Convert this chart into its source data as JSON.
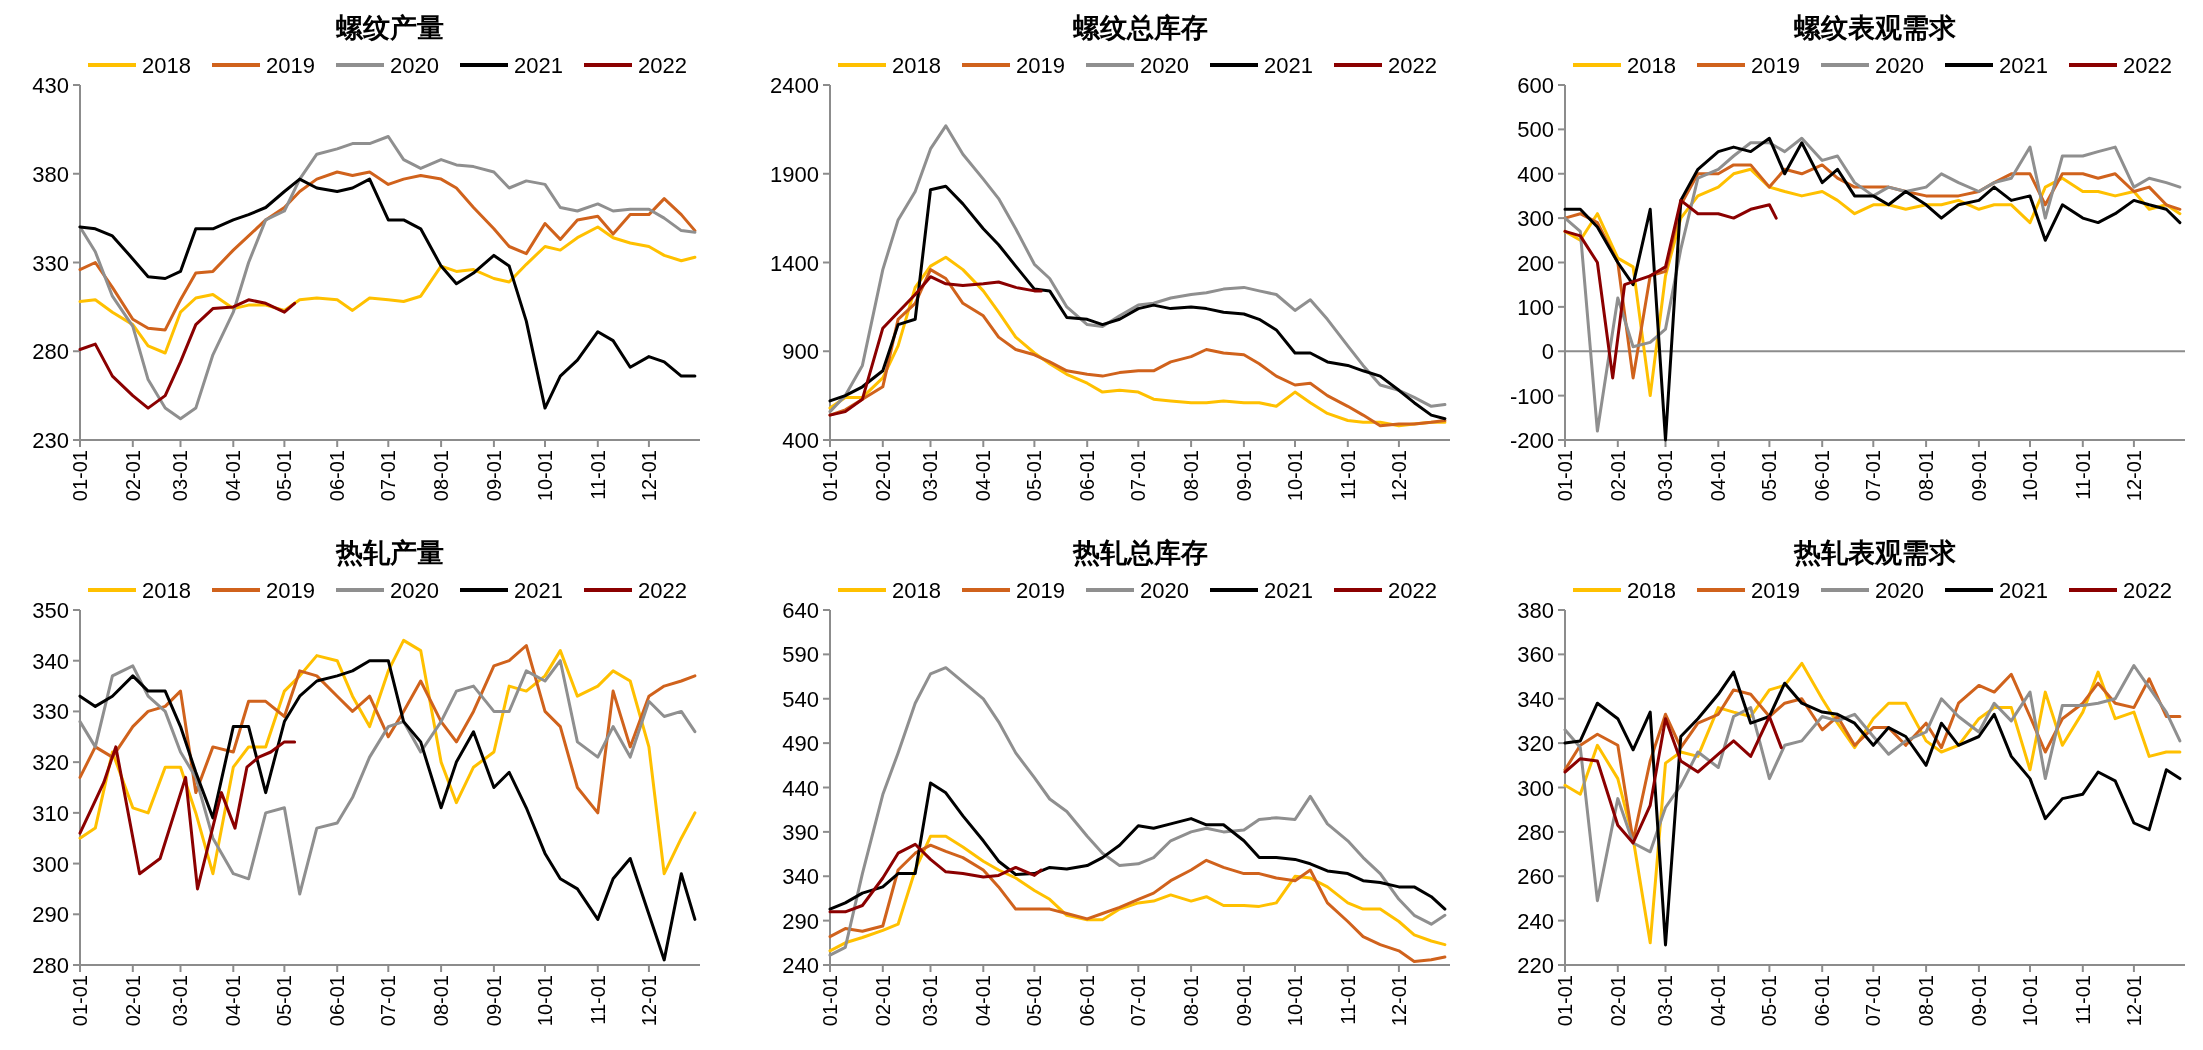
{
  "chart_data": [
    {
      "type": "line",
      "title": "螺纹产量",
      "legend": "top",
      "x": [
        "--01-01",
        "--01-10",
        "--01-20",
        "--02-01",
        "--02-10",
        "--02-20",
        "--03-01",
        "--03-10",
        "--03-20",
        "--04-01",
        "--04-10",
        "--04-20",
        "--05-01",
        "--05-10",
        "--05-20",
        "--06-01",
        "--06-10",
        "--06-20",
        "--07-01",
        "--07-10",
        "--07-20",
        "--08-01",
        "--08-10",
        "--08-20",
        "--09-01",
        "--09-10",
        "--09-20",
        "--10-01",
        "--10-10",
        "--10-20",
        "--11-01",
        "--11-10",
        "--11-20",
        "--12-01",
        "--12-10",
        "--12-20",
        "--12-28"
      ],
      "xlim": [
        "--01-01",
        "--12-31"
      ],
      "xticks": [
        {
          "value": "--01-01",
          "label": "01-01"
        },
        {
          "value": "--02-01",
          "label": "02-01"
        },
        {
          "value": "--03-01",
          "label": "03-01"
        },
        {
          "value": "--04-01",
          "label": "04-01"
        },
        {
          "value": "--05-01",
          "label": "05-01"
        },
        {
          "value": "--06-01",
          "label": "06-01"
        },
        {
          "value": "--07-01",
          "label": "07-01"
        },
        {
          "value": "--08-01",
          "label": "08-01"
        },
        {
          "value": "--09-01",
          "label": "09-01"
        },
        {
          "value": "--10-01",
          "label": "10-01"
        },
        {
          "value": "--11-01",
          "label": "11-01"
        },
        {
          "value": "--12-01",
          "label": "12-01"
        }
      ],
      "ylim": [
        230,
        430
      ],
      "yticks": [
        230,
        280,
        330,
        380,
        430
      ],
      "series": [
        {
          "name": "2018",
          "color": "#ffc000",
          "values": [
            308,
            309,
            302,
            295,
            283,
            279,
            302,
            310,
            312,
            304,
            306,
            306,
            303,
            309,
            310,
            309,
            303,
            310,
            309,
            308,
            311,
            328,
            325,
            326,
            321,
            319,
            329,
            339,
            337,
            344,
            350,
            344,
            341,
            339,
            334,
            331,
            333
          ]
        },
        {
          "name": "2019",
          "color": "#d0621c",
          "values": [
            326,
            330,
            316,
            298,
            293,
            292,
            309,
            324,
            325,
            337,
            345,
            354,
            361,
            370,
            377,
            381,
            379,
            381,
            374,
            377,
            379,
            377,
            372,
            361,
            349,
            339,
            335,
            352,
            343,
            354,
            356,
            346,
            357,
            357,
            366,
            357,
            348
          ]
        },
        {
          "name": "2020",
          "color": "#8f8f8f",
          "values": [
            350,
            336,
            311,
            294,
            264,
            248,
            242,
            248,
            278,
            302,
            330,
            354,
            359,
            377,
            391,
            394,
            397,
            397,
            401,
            388,
            383,
            388,
            385,
            384,
            381,
            372,
            376,
            374,
            361,
            359,
            363,
            359,
            360,
            360,
            355,
            348,
            347
          ]
        },
        {
          "name": "2021",
          "color": "#000000",
          "values": [
            350,
            349,
            345,
            332,
            322,
            321,
            325,
            349,
            349,
            354,
            357,
            361,
            370,
            377,
            372,
            370,
            372,
            377,
            354,
            354,
            349,
            328,
            318,
            324,
            334,
            328,
            297,
            248,
            266,
            275,
            291,
            286,
            271,
            277,
            274,
            266,
            266
          ]
        },
        {
          "name": "2022",
          "color": "#8b0000",
          "x": [
            "--01-01",
            "--01-10",
            "--01-20",
            "--02-01",
            "--02-10",
            "--02-20",
            "--03-01",
            "--03-10",
            "--03-20",
            "--04-01",
            "--04-10",
            "--04-20",
            "--05-01",
            "--05-07"
          ],
          "values": [
            281,
            284,
            266,
            255,
            248,
            255,
            274,
            295,
            304,
            305,
            309,
            307,
            302,
            307
          ]
        }
      ]
    },
    {
      "type": "line",
      "title": "螺纹总库存",
      "legend": "top",
      "x": [
        "--01-01",
        "--01-10",
        "--01-20",
        "--02-01",
        "--02-10",
        "--02-20",
        "--03-01",
        "--03-10",
        "--03-20",
        "--04-01",
        "--04-10",
        "--04-20",
        "--05-01",
        "--05-10",
        "--05-20",
        "--06-01",
        "--06-10",
        "--06-20",
        "--07-01",
        "--07-10",
        "--07-20",
        "--08-01",
        "--08-10",
        "--08-20",
        "--09-01",
        "--09-10",
        "--09-20",
        "--10-01",
        "--10-10",
        "--10-20",
        "--11-01",
        "--11-10",
        "--11-20",
        "--12-01",
        "--12-10",
        "--12-20",
        "--12-28"
      ],
      "xlim": [
        "--01-01",
        "--12-31"
      ],
      "xticks": [
        {
          "value": "--01-01",
          "label": "01-01"
        },
        {
          "value": "--02-01",
          "label": "02-01"
        },
        {
          "value": "--03-01",
          "label": "03-01"
        },
        {
          "value": "--04-01",
          "label": "04-01"
        },
        {
          "value": "--05-01",
          "label": "05-01"
        },
        {
          "value": "--06-01",
          "label": "06-01"
        },
        {
          "value": "--07-01",
          "label": "07-01"
        },
        {
          "value": "--08-01",
          "label": "08-01"
        },
        {
          "value": "--09-01",
          "label": "09-01"
        },
        {
          "value": "--10-01",
          "label": "10-01"
        },
        {
          "value": "--11-01",
          "label": "11-01"
        },
        {
          "value": "--12-01",
          "label": "12-01"
        }
      ],
      "ylim": [
        400,
        2400
      ],
      "yticks": [
        400,
        900,
        1400,
        1900,
        2400
      ],
      "series": [
        {
          "name": "2018",
          "color": "#ffc000",
          "values": [
            580,
            640,
            640,
            750,
            930,
            1260,
            1380,
            1430,
            1360,
            1240,
            1120,
            980,
            890,
            830,
            770,
            720,
            670,
            680,
            670,
            630,
            620,
            610,
            610,
            620,
            610,
            610,
            590,
            670,
            610,
            550,
            510,
            500,
            500,
            480,
            490,
            500,
            500
          ]
        },
        {
          "name": "2019",
          "color": "#d0621c",
          "values": [
            540,
            570,
            630,
            700,
            1080,
            1170,
            1360,
            1310,
            1170,
            1100,
            980,
            910,
            880,
            840,
            790,
            770,
            760,
            780,
            790,
            790,
            840,
            870,
            910,
            890,
            880,
            830,
            760,
            710,
            720,
            650,
            590,
            540,
            480,
            490,
            490,
            500,
            510
          ]
        },
        {
          "name": "2020",
          "color": "#8f8f8f",
          "values": [
            560,
            650,
            820,
            1360,
            1640,
            1800,
            2040,
            2170,
            2010,
            1870,
            1760,
            1590,
            1390,
            1310,
            1150,
            1050,
            1040,
            1100,
            1160,
            1170,
            1200,
            1220,
            1230,
            1250,
            1260,
            1240,
            1220,
            1130,
            1190,
            1080,
            930,
            820,
            710,
            680,
            640,
            590,
            600
          ]
        },
        {
          "name": "2021",
          "color": "#000000",
          "values": [
            620,
            650,
            700,
            790,
            1050,
            1080,
            1810,
            1830,
            1730,
            1590,
            1500,
            1380,
            1250,
            1240,
            1090,
            1080,
            1050,
            1080,
            1140,
            1160,
            1140,
            1150,
            1140,
            1120,
            1110,
            1080,
            1020,
            890,
            890,
            840,
            820,
            790,
            760,
            680,
            610,
            540,
            520
          ]
        },
        {
          "name": "2022",
          "color": "#8b0000",
          "x": [
            "--01-01",
            "--01-10",
            "--01-20",
            "--02-01",
            "--02-10",
            "--02-20",
            "--03-01",
            "--03-10",
            "--03-20",
            "--04-01",
            "--04-10",
            "--04-20",
            "--05-01",
            "--05-05"
          ],
          "values": [
            540,
            560,
            630,
            1030,
            1120,
            1220,
            1320,
            1280,
            1270,
            1280,
            1290,
            1260,
            1240,
            1240
          ]
        }
      ]
    },
    {
      "type": "line",
      "title": "螺纹表观需求",
      "legend": "top",
      "x": [
        "--01-01",
        "--01-10",
        "--01-20",
        "--02-01",
        "--02-10",
        "--02-20",
        "--03-01",
        "--03-10",
        "--03-20",
        "--04-01",
        "--04-10",
        "--04-20",
        "--05-01",
        "--05-10",
        "--05-20",
        "--06-01",
        "--06-10",
        "--06-20",
        "--07-01",
        "--07-10",
        "--07-20",
        "--08-01",
        "--08-10",
        "--08-20",
        "--09-01",
        "--09-10",
        "--09-20",
        "--10-01",
        "--10-10",
        "--10-20",
        "--11-01",
        "--11-10",
        "--11-20",
        "--12-01",
        "--12-10",
        "--12-20",
        "--12-28"
      ],
      "xlim": [
        "--01-01",
        "--12-31"
      ],
      "xticks": [
        {
          "value": "--01-01",
          "label": "01-01"
        },
        {
          "value": "--02-01",
          "label": "02-01"
        },
        {
          "value": "--03-01",
          "label": "03-01"
        },
        {
          "value": "--04-01",
          "label": "04-01"
        },
        {
          "value": "--05-01",
          "label": "05-01"
        },
        {
          "value": "--06-01",
          "label": "06-01"
        },
        {
          "value": "--07-01",
          "label": "07-01"
        },
        {
          "value": "--08-01",
          "label": "08-01"
        },
        {
          "value": "--09-01",
          "label": "09-01"
        },
        {
          "value": "--10-01",
          "label": "10-01"
        },
        {
          "value": "--11-01",
          "label": "11-01"
        },
        {
          "value": "--12-01",
          "label": "12-01"
        }
      ],
      "ylim": [
        -200,
        600
      ],
      "yticks": [
        -200,
        -100,
        0,
        100,
        200,
        300,
        400,
        500,
        600
      ],
      "ref_lines": [
        {
          "axis": "y",
          "value": 0,
          "color": "#8c8c8c"
        }
      ],
      "series": [
        {
          "name": "2018",
          "color": "#ffc000",
          "values": [
            270,
            250,
            310,
            210,
            190,
            -100,
            170,
            300,
            350,
            370,
            400,
            410,
            370,
            360,
            350,
            360,
            340,
            310,
            330,
            330,
            320,
            330,
            330,
            340,
            320,
            330,
            330,
            290,
            370,
            390,
            360,
            360,
            350,
            360,
            320,
            330,
            310
          ]
        },
        {
          "name": "2019",
          "color": "#d0621c",
          "values": [
            300,
            310,
            290,
            200,
            -60,
            170,
            180,
            330,
            400,
            400,
            420,
            420,
            370,
            410,
            400,
            420,
            390,
            370,
            370,
            370,
            360,
            350,
            350,
            350,
            360,
            380,
            400,
            400,
            330,
            400,
            400,
            390,
            400,
            360,
            370,
            330,
            320
          ]
        },
        {
          "name": "2020",
          "color": "#8f8f8f",
          "values": [
            300,
            270,
            -180,
            120,
            10,
            20,
            50,
            230,
            390,
            410,
            440,
            470,
            470,
            450,
            480,
            430,
            440,
            380,
            350,
            370,
            360,
            370,
            400,
            380,
            360,
            380,
            390,
            460,
            300,
            440,
            440,
            450,
            460,
            370,
            390,
            380,
            370
          ]
        },
        {
          "name": "2021",
          "color": "#000000",
          "values": [
            320,
            320,
            280,
            200,
            150,
            320,
            -200,
            340,
            410,
            450,
            460,
            450,
            480,
            400,
            470,
            380,
            410,
            350,
            350,
            330,
            360,
            330,
            300,
            330,
            340,
            370,
            340,
            350,
            250,
            330,
            300,
            290,
            310,
            340,
            330,
            320,
            290
          ]
        },
        {
          "name": "2022",
          "color": "#8b0000",
          "x": [
            "--01-01",
            "--01-10",
            "--01-20",
            "--01-29",
            "--02-05",
            "--02-20",
            "--03-01",
            "--03-10",
            "--03-20",
            "--04-01",
            "--04-10",
            "--04-20",
            "--05-01",
            "--05-05"
          ],
          "values": [
            270,
            260,
            200,
            -60,
            150,
            170,
            190,
            340,
            310,
            310,
            300,
            320,
            330,
            300
          ]
        }
      ]
    },
    {
      "type": "line",
      "title": "热轧产量",
      "legend": "top",
      "x": [
        "--01-01",
        "--01-10",
        "--01-20",
        "--02-01",
        "--02-10",
        "--02-20",
        "--03-01",
        "--03-10",
        "--03-20",
        "--04-01",
        "--04-10",
        "--04-20",
        "--05-01",
        "--05-10",
        "--05-20",
        "--06-01",
        "--06-10",
        "--06-20",
        "--07-01",
        "--07-10",
        "--07-20",
        "--08-01",
        "--08-10",
        "--08-20",
        "--09-01",
        "--09-10",
        "--09-20",
        "--10-01",
        "--10-10",
        "--10-20",
        "--11-01",
        "--11-10",
        "--11-20",
        "--12-01",
        "--12-10",
        "--12-20",
        "--12-28"
      ],
      "xlim": [
        "--01-01",
        "--12-31"
      ],
      "xticks": [
        {
          "value": "--01-01",
          "label": "01-01"
        },
        {
          "value": "--02-01",
          "label": "02-01"
        },
        {
          "value": "--03-01",
          "label": "03-01"
        },
        {
          "value": "--04-01",
          "label": "04-01"
        },
        {
          "value": "--05-01",
          "label": "05-01"
        },
        {
          "value": "--06-01",
          "label": "06-01"
        },
        {
          "value": "--07-01",
          "label": "07-01"
        },
        {
          "value": "--08-01",
          "label": "08-01"
        },
        {
          "value": "--09-01",
          "label": "09-01"
        },
        {
          "value": "--10-01",
          "label": "10-01"
        },
        {
          "value": "--11-01",
          "label": "11-01"
        },
        {
          "value": "--12-01",
          "label": "12-01"
        }
      ],
      "ylim": [
        280,
        350
      ],
      "yticks": [
        280,
        290,
        300,
        310,
        320,
        330,
        340,
        350
      ],
      "series": [
        {
          "name": "2018",
          "color": "#ffc000",
          "values": [
            305,
            307,
            322,
            311,
            310,
            319,
            319,
            310,
            298,
            319,
            323,
            323,
            334,
            337,
            341,
            340,
            333,
            327,
            338,
            344,
            342,
            320,
            312,
            319,
            322,
            335,
            334,
            337,
            342,
            333,
            335,
            338,
            336,
            323,
            298,
            305,
            310
          ]
        },
        {
          "name": "2019",
          "color": "#d0621c",
          "values": [
            317,
            323,
            321,
            327,
            330,
            331,
            334,
            314,
            323,
            322,
            332,
            332,
            329,
            338,
            337,
            333,
            330,
            333,
            325,
            330,
            336,
            328,
            324,
            330,
            339,
            340,
            343,
            330,
            327,
            315,
            310,
            334,
            323,
            333,
            335,
            336,
            337
          ]
        },
        {
          "name": "2020",
          "color": "#8f8f8f",
          "values": [
            328,
            323,
            337,
            339,
            333,
            330,
            322,
            317,
            305,
            298,
            297,
            310,
            311,
            294,
            307,
            308,
            313,
            321,
            327,
            328,
            322,
            328,
            334,
            335,
            330,
            330,
            338,
            336,
            340,
            324,
            321,
            327,
            321,
            332,
            329,
            330,
            326
          ]
        },
        {
          "name": "2021",
          "color": "#000000",
          "values": [
            333,
            331,
            333,
            337,
            334,
            334,
            327,
            318,
            309,
            327,
            327,
            314,
            328,
            333,
            336,
            337,
            338,
            340,
            340,
            328,
            324,
            311,
            320,
            326,
            315,
            318,
            311,
            302,
            297,
            295,
            289,
            297,
            301,
            290,
            281,
            298,
            289
          ]
        },
        {
          "name": "2022",
          "color": "#8b0000",
          "x": [
            "--01-01",
            "--01-08",
            "--01-15",
            "--01-22",
            "--02-05",
            "--02-17",
            "--03-04",
            "--03-11",
            "--03-25",
            "--04-02",
            "--04-09",
            "--04-16",
            "--04-23",
            "--05-01",
            "--05-07"
          ],
          "values": [
            306,
            311,
            316,
            323,
            298,
            301,
            317,
            295,
            314,
            307,
            319,
            321,
            322,
            324,
            324
          ]
        }
      ]
    },
    {
      "type": "line",
      "title": "热轧总库存",
      "legend": "top",
      "x": [
        "--01-01",
        "--01-10",
        "--01-20",
        "--02-01",
        "--02-10",
        "--02-20",
        "--03-01",
        "--03-10",
        "--03-20",
        "--04-01",
        "--04-10",
        "--04-20",
        "--05-01",
        "--05-10",
        "--05-20",
        "--06-01",
        "--06-10",
        "--06-20",
        "--07-01",
        "--07-10",
        "--07-20",
        "--08-01",
        "--08-10",
        "--08-20",
        "--09-01",
        "--09-10",
        "--09-20",
        "--10-01",
        "--10-10",
        "--10-20",
        "--11-01",
        "--11-10",
        "--11-20",
        "--12-01",
        "--12-10",
        "--12-20",
        "--12-28"
      ],
      "xlim": [
        "--01-01",
        "--12-31"
      ],
      "xticks": [
        {
          "value": "--01-01",
          "label": "01-01"
        },
        {
          "value": "--02-01",
          "label": "02-01"
        },
        {
          "value": "--03-01",
          "label": "03-01"
        },
        {
          "value": "--04-01",
          "label": "04-01"
        },
        {
          "value": "--05-01",
          "label": "05-01"
        },
        {
          "value": "--06-01",
          "label": "06-01"
        },
        {
          "value": "--07-01",
          "label": "07-01"
        },
        {
          "value": "--08-01",
          "label": "08-01"
        },
        {
          "value": "--09-01",
          "label": "09-01"
        },
        {
          "value": "--10-01",
          "label": "10-01"
        },
        {
          "value": "--11-01",
          "label": "11-01"
        },
        {
          "value": "--12-01",
          "label": "12-01"
        }
      ],
      "ylim": [
        240,
        640
      ],
      "yticks": [
        240,
        290,
        340,
        390,
        440,
        490,
        540,
        590,
        640
      ],
      "series": [
        {
          "name": "2018",
          "color": "#ffc000",
          "values": [
            256,
            265,
            271,
            279,
            286,
            347,
            385,
            385,
            373,
            357,
            347,
            338,
            324,
            314,
            296,
            291,
            291,
            303,
            310,
            312,
            319,
            312,
            317,
            307,
            307,
            306,
            310,
            340,
            338,
            328,
            310,
            303,
            303,
            289,
            274,
            267,
            263
          ]
        },
        {
          "name": "2019",
          "color": "#d0621c",
          "values": [
            272,
            281,
            278,
            284,
            347,
            366,
            375,
            368,
            361,
            347,
            328,
            303,
            303,
            303,
            298,
            292,
            298,
            305,
            314,
            321,
            335,
            347,
            358,
            350,
            343,
            343,
            338,
            335,
            347,
            310,
            289,
            272,
            263,
            256,
            244,
            246,
            249
          ]
        },
        {
          "name": "2020",
          "color": "#8f8f8f",
          "values": [
            251,
            260,
            343,
            432,
            479,
            535,
            568,
            575,
            559,
            540,
            514,
            479,
            451,
            427,
            413,
            385,
            366,
            352,
            354,
            361,
            380,
            390,
            394,
            390,
            392,
            404,
            406,
            404,
            430,
            399,
            380,
            361,
            343,
            314,
            296,
            286,
            296
          ]
        },
        {
          "name": "2021",
          "color": "#000000",
          "values": [
            303,
            310,
            321,
            328,
            343,
            343,
            445,
            434,
            408,
            380,
            357,
            342,
            343,
            350,
            348,
            352,
            361,
            375,
            397,
            394,
            399,
            405,
            398,
            398,
            380,
            361,
            361,
            359,
            354,
            346,
            343,
            335,
            333,
            328,
            328,
            317,
            303
          ]
        },
        {
          "name": "2022",
          "color": "#8b0000",
          "x": [
            "--01-01",
            "--01-10",
            "--01-20",
            "--02-01",
            "--02-10",
            "--02-20",
            "--03-01",
            "--03-10",
            "--03-20",
            "--04-01",
            "--04-10",
            "--04-20",
            "--05-01",
            "--05-05"
          ],
          "values": [
            300,
            300,
            307,
            338,
            366,
            376,
            359,
            345,
            343,
            339,
            341,
            350,
            341,
            347
          ]
        }
      ]
    },
    {
      "type": "line",
      "title": "热轧表观需求",
      "legend": "top",
      "x": [
        "--01-01",
        "--01-10",
        "--01-20",
        "--02-01",
        "--02-10",
        "--02-20",
        "--03-01",
        "--03-10",
        "--03-20",
        "--04-01",
        "--04-10",
        "--04-20",
        "--05-01",
        "--05-10",
        "--05-20",
        "--06-01",
        "--06-10",
        "--06-20",
        "--07-01",
        "--07-10",
        "--07-20",
        "--08-01",
        "--08-10",
        "--08-20",
        "--09-01",
        "--09-10",
        "--09-20",
        "--10-01",
        "--10-10",
        "--10-20",
        "--11-01",
        "--11-10",
        "--11-20",
        "--12-01",
        "--12-10",
        "--12-20",
        "--12-28"
      ],
      "xlim": [
        "--01-01",
        "--12-31"
      ],
      "xticks": [
        {
          "value": "--01-01",
          "label": "01-01"
        },
        {
          "value": "--02-01",
          "label": "02-01"
        },
        {
          "value": "--03-01",
          "label": "03-01"
        },
        {
          "value": "--04-01",
          "label": "04-01"
        },
        {
          "value": "--05-01",
          "label": "05-01"
        },
        {
          "value": "--06-01",
          "label": "06-01"
        },
        {
          "value": "--07-01",
          "label": "07-01"
        },
        {
          "value": "--08-01",
          "label": "08-01"
        },
        {
          "value": "--09-01",
          "label": "09-01"
        },
        {
          "value": "--10-01",
          "label": "10-01"
        },
        {
          "value": "--11-01",
          "label": "11-01"
        },
        {
          "value": "--12-01",
          "label": "12-01"
        }
      ],
      "ylim": [
        220,
        380
      ],
      "yticks": [
        220,
        240,
        260,
        280,
        300,
        320,
        340,
        360,
        380
      ],
      "series": [
        {
          "name": "2018",
          "color": "#ffc000",
          "values": [
            301,
            297,
            319,
            304,
            277,
            230,
            311,
            316,
            314,
            336,
            334,
            332,
            344,
            346,
            356,
            340,
            329,
            318,
            331,
            338,
            338,
            321,
            316,
            319,
            331,
            336,
            336,
            308,
            343,
            319,
            334,
            352,
            331,
            334,
            314,
            316,
            316
          ]
        },
        {
          "name": "2019",
          "color": "#d0621c",
          "values": [
            308,
            319,
            324,
            319,
            276,
            312,
            333,
            318,
            329,
            333,
            344,
            342,
            332,
            338,
            340,
            326,
            332,
            319,
            327,
            327,
            319,
            329,
            318,
            338,
            346,
            343,
            351,
            332,
            316,
            331,
            338,
            347,
            338,
            336,
            349,
            332,
            332
          ]
        },
        {
          "name": "2020",
          "color": "#8f8f8f",
          "values": [
            326,
            318,
            249,
            295,
            275,
            271,
            291,
            301,
            316,
            309,
            332,
            336,
            304,
            319,
            321,
            332,
            330,
            333,
            323,
            315,
            321,
            325,
            340,
            332,
            325,
            338,
            330,
            343,
            304,
            337,
            337,
            338,
            340,
            355,
            345,
            334,
            321
          ]
        },
        {
          "name": "2021",
          "color": "#000000",
          "values": [
            320,
            321,
            338,
            331,
            317,
            334,
            229,
            323,
            331,
            342,
            352,
            329,
            332,
            347,
            338,
            334,
            333,
            329,
            319,
            327,
            323,
            310,
            329,
            319,
            323,
            333,
            314,
            304,
            286,
            295,
            297,
            307,
            303,
            284,
            281,
            308,
            304
          ]
        },
        {
          "name": "2022",
          "color": "#8b0000",
          "x": [
            "--01-01",
            "--01-10",
            "--01-20",
            "--02-01",
            "--02-10",
            "--02-20",
            "--03-01",
            "--03-10",
            "--03-20",
            "--04-01",
            "--04-10",
            "--04-20",
            "--05-01",
            "--05-08"
          ],
          "values": [
            307,
            313,
            312,
            283,
            275,
            292,
            331,
            312,
            307,
            315,
            321,
            314,
            332,
            318
          ]
        }
      ]
    }
  ]
}
